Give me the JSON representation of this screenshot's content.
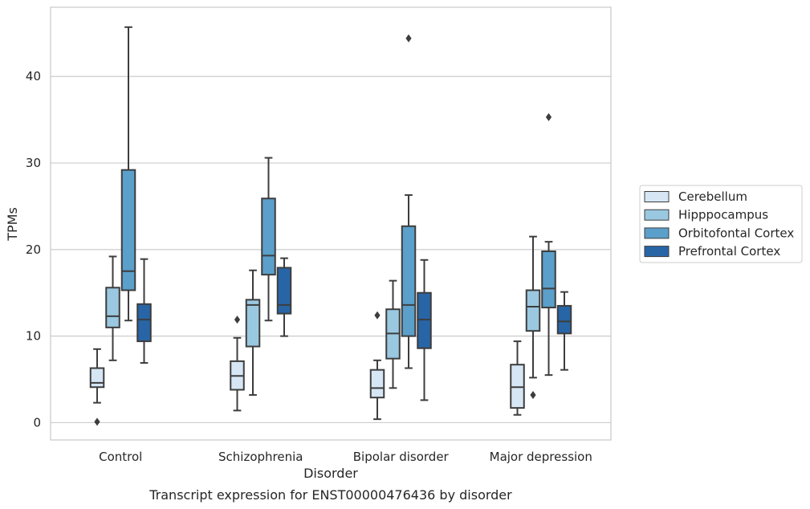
{
  "chart_data": {
    "type": "box",
    "caption": "Transcript expression for ENST00000476436 by disorder",
    "xlabel": "Disorder",
    "ylabel": "TPMs",
    "ylim": [
      -2,
      48
    ],
    "yticks": [
      0,
      10,
      20,
      30,
      40
    ],
    "grid": true,
    "legend_position": "right",
    "categories": [
      "Control",
      "Schizophrenia",
      "Bipolar disorder",
      "Major depression"
    ],
    "series": [
      {
        "name": "Cerebellum",
        "color": "#d6e6f4",
        "boxes": [
          {
            "whislo": 2.3,
            "q1": 4.1,
            "med": 4.6,
            "q3": 6.3,
            "whishi": 8.5,
            "fliers": [
              0.1
            ]
          },
          {
            "whislo": 1.4,
            "q1": 3.8,
            "med": 5.4,
            "q3": 7.1,
            "whishi": 9.8,
            "fliers": [
              11.9
            ]
          },
          {
            "whislo": 0.4,
            "q1": 2.9,
            "med": 4.0,
            "q3": 6.1,
            "whishi": 7.2,
            "fliers": [
              12.4
            ]
          },
          {
            "whislo": 0.9,
            "q1": 1.7,
            "med": 4.1,
            "q3": 6.7,
            "whishi": 9.4,
            "fliers": []
          }
        ]
      },
      {
        "name": "Hipppocampus",
        "color": "#9ac8e0",
        "boxes": [
          {
            "whislo": 7.2,
            "q1": 11.0,
            "med": 12.3,
            "q3": 15.6,
            "whishi": 19.2,
            "fliers": []
          },
          {
            "whislo": 3.2,
            "q1": 8.8,
            "med": 13.6,
            "q3": 14.2,
            "whishi": 17.6,
            "fliers": []
          },
          {
            "whislo": 4.0,
            "q1": 7.4,
            "med": 10.3,
            "q3": 13.1,
            "whishi": 16.4,
            "fliers": []
          },
          {
            "whislo": 5.2,
            "q1": 10.6,
            "med": 13.4,
            "q3": 15.3,
            "whishi": 21.5,
            "fliers": [
              3.2
            ]
          }
        ]
      },
      {
        "name": "Orbitofontal Cortex",
        "color": "#5b9fcb",
        "boxes": [
          {
            "whislo": 11.8,
            "q1": 15.3,
            "med": 17.5,
            "q3": 29.2,
            "whishi": 45.7,
            "fliers": []
          },
          {
            "whislo": 11.8,
            "q1": 17.1,
            "med": 19.3,
            "q3": 25.9,
            "whishi": 30.6,
            "fliers": []
          },
          {
            "whislo": 6.3,
            "q1": 10.0,
            "med": 13.6,
            "q3": 22.7,
            "whishi": 26.3,
            "fliers": [
              44.4
            ]
          },
          {
            "whislo": 5.5,
            "q1": 13.3,
            "med": 15.5,
            "q3": 19.8,
            "whishi": 20.9,
            "fliers": [
              35.3
            ]
          }
        ]
      },
      {
        "name": "Prefrontal Cortex",
        "color": "#2865a6",
        "boxes": [
          {
            "whislo": 6.9,
            "q1": 9.4,
            "med": 11.9,
            "q3": 13.7,
            "whishi": 18.9,
            "fliers": []
          },
          {
            "whislo": 10.0,
            "q1": 12.6,
            "med": 13.6,
            "q3": 17.9,
            "whishi": 19.0,
            "fliers": []
          },
          {
            "whislo": 2.6,
            "q1": 8.6,
            "med": 11.9,
            "q3": 15.0,
            "whishi": 18.8,
            "fliers": []
          },
          {
            "whislo": 6.1,
            "q1": 10.3,
            "med": 11.7,
            "q3": 13.5,
            "whishi": 15.1,
            "fliers": []
          }
        ]
      }
    ]
  }
}
